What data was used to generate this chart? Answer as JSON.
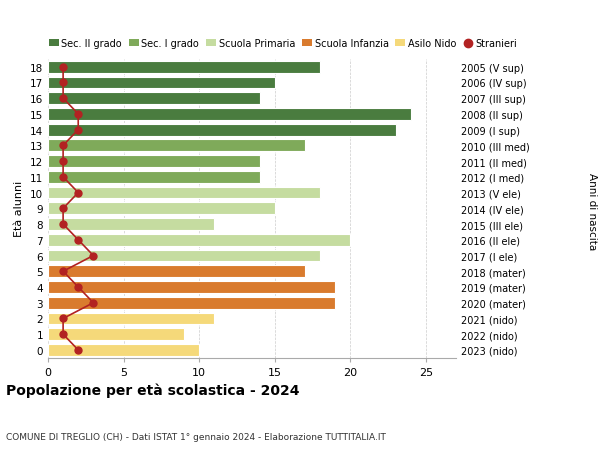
{
  "ages": [
    18,
    17,
    16,
    15,
    14,
    13,
    12,
    11,
    10,
    9,
    8,
    7,
    6,
    5,
    4,
    3,
    2,
    1,
    0
  ],
  "years": [
    "2005 (V sup)",
    "2006 (IV sup)",
    "2007 (III sup)",
    "2008 (II sup)",
    "2009 (I sup)",
    "2010 (III med)",
    "2011 (II med)",
    "2012 (I med)",
    "2013 (V ele)",
    "2014 (IV ele)",
    "2015 (III ele)",
    "2016 (II ele)",
    "2017 (I ele)",
    "2018 (mater)",
    "2019 (mater)",
    "2020 (mater)",
    "2021 (nido)",
    "2022 (nido)",
    "2023 (nido)"
  ],
  "values": [
    18,
    15,
    14,
    24,
    23,
    17,
    14,
    14,
    18,
    15,
    11,
    20,
    18,
    17,
    19,
    19,
    11,
    9,
    10
  ],
  "stranieri": [
    1,
    1,
    1,
    2,
    2,
    1,
    1,
    1,
    2,
    1,
    1,
    2,
    3,
    1,
    2,
    3,
    1,
    1,
    2
  ],
  "bar_colors": [
    "#4a7c3f",
    "#4a7c3f",
    "#4a7c3f",
    "#4a7c3f",
    "#4a7c3f",
    "#7faa5a",
    "#7faa5a",
    "#7faa5a",
    "#c5dca0",
    "#c5dca0",
    "#c5dca0",
    "#c5dca0",
    "#c5dca0",
    "#d97b2e",
    "#d97b2e",
    "#d97b2e",
    "#f5d97a",
    "#f5d97a",
    "#f5d97a"
  ],
  "legend_labels": [
    "Sec. II grado",
    "Sec. I grado",
    "Scuola Primaria",
    "Scuola Infanzia",
    "Asilo Nido",
    "Stranieri"
  ],
  "legend_colors": [
    "#4a7c3f",
    "#7faa5a",
    "#c5dca0",
    "#d97b2e",
    "#f5d97a",
    "#b22222"
  ],
  "stranieri_color": "#b22222",
  "title": "Popolazione per età scolastica - 2024",
  "subtitle": "COMUNE DI TREGLIO (CH) - Dati ISTAT 1° gennaio 2024 - Elaborazione TUTTITALIA.IT",
  "ylabel_left": "Età alunni",
  "ylabel_right": "Anni di nascita",
  "xlim": [
    0,
    27
  ],
  "xticks": [
    0,
    5,
    10,
    15,
    20,
    25
  ],
  "bg_color": "#ffffff",
  "grid_color": "#cccccc"
}
